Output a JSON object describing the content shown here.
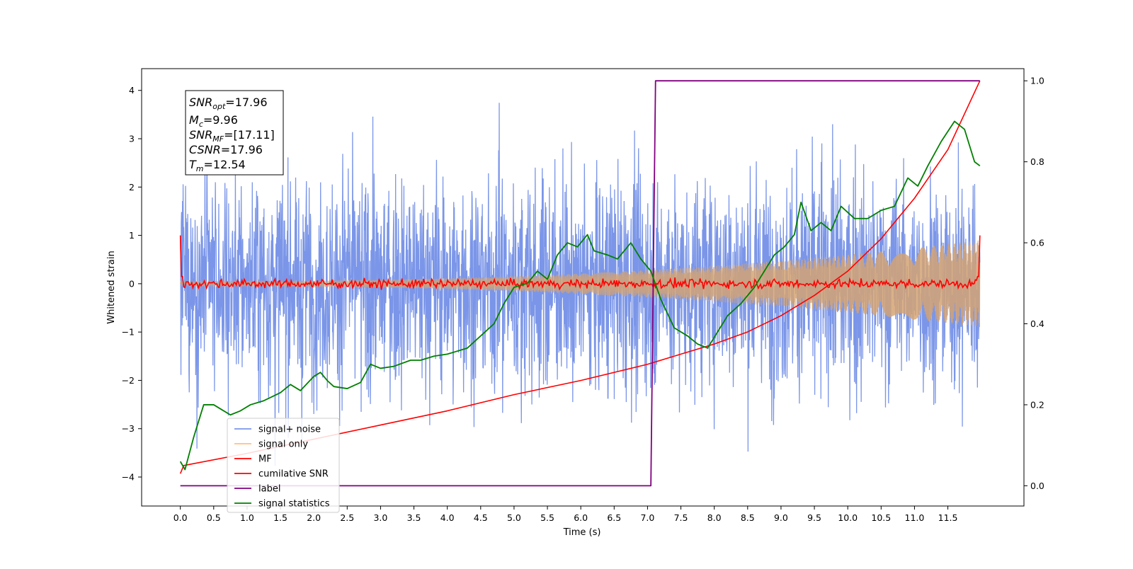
{
  "chart_data": {
    "type": "line",
    "xlabel": "Time (s)",
    "ylabel": "Whitened strain",
    "xlim": [
      -0.58,
      12.64
    ],
    "ylim": [
      -4.6,
      4.45
    ],
    "ylim_right": [
      -0.05,
      1.03
    ],
    "x_ticks": [
      "0.0",
      "0.5",
      "1.0",
      "1.5",
      "2.0",
      "2.5",
      "3.0",
      "3.5",
      "4.0",
      "4.5",
      "5.0",
      "5.5",
      "6.0",
      "6.5",
      "7.0",
      "7.5",
      "8.0",
      "8.5",
      "9.0",
      "9.5",
      "10.0",
      "10.5",
      "11.0",
      "11.5"
    ],
    "y_ticks_left": [
      "4",
      "3",
      "2",
      "1",
      "0",
      "−1",
      "−2",
      "−3",
      "−4"
    ],
    "y_ticks_right": [
      "1.0",
      "0.8",
      "0.6",
      "0.4",
      "0.2",
      "0.0"
    ],
    "annotation": {
      "lines": [
        {
          "base": "SNR",
          "sub": "opt",
          "value": "=17.96"
        },
        {
          "base": "M",
          "sub": "c",
          "value": "=9.96"
        },
        {
          "base": "SNR",
          "sub": "MF",
          "value": "=[17.11]"
        },
        {
          "base": "CSNR",
          "sub": "",
          "value": "=17.96"
        },
        {
          "base": "T",
          "sub": "m",
          "value": "=12.54"
        }
      ]
    },
    "legend": {
      "placement": "lower-left",
      "entries": [
        {
          "label": "signal+ noise",
          "color": "#7b96e8"
        },
        {
          "label": "signal only",
          "color": "#ffc080"
        },
        {
          "label": "MF",
          "color": "#ff0000"
        },
        {
          "label": "cumilative SNR",
          "color": "#ff0000"
        },
        {
          "label": "label",
          "color": "#800080"
        },
        {
          "label": "signal statistics",
          "color": "#008000"
        }
      ]
    },
    "series": [
      {
        "name": "signal+ noise",
        "axis": "left",
        "color": "#7b96e8",
        "noise": true,
        "std": 1.1,
        "t_start": 0.0,
        "t_end": 11.98
      },
      {
        "name": "signal only",
        "axis": "left",
        "color": "#d4a373",
        "chirp": true,
        "amp_start": 0.05,
        "amp_end": 0.9,
        "t_start": 0.0,
        "t_end": 11.98
      },
      {
        "name": "MF",
        "axis": "left",
        "color": "#ff0000",
        "t_start": 0.0,
        "t_end": 11.98
      },
      {
        "name": "cumilative SNR",
        "axis": "right",
        "color": "#ff0000",
        "x": [
          0.0,
          0.05,
          1.0,
          2.0,
          3.0,
          4.0,
          5.0,
          6.0,
          7.0,
          7.5,
          8.0,
          8.5,
          9.0,
          9.5,
          10.0,
          10.5,
          11.0,
          11.5,
          11.98
        ],
        "y": [
          0.03,
          0.05,
          0.08,
          0.115,
          0.15,
          0.185,
          0.225,
          0.26,
          0.3,
          0.325,
          0.35,
          0.38,
          0.42,
          0.47,
          0.53,
          0.61,
          0.71,
          0.83,
          1.0
        ]
      },
      {
        "name": "label",
        "axis": "right",
        "color": "#800080",
        "x": [
          0.0,
          7.05,
          7.12,
          11.98
        ],
        "y": [
          0.0,
          0.0,
          1.0,
          1.0
        ]
      },
      {
        "name": "signal statistics",
        "axis": "right",
        "color": "#008000",
        "x": [
          0.0,
          0.07,
          0.2,
          0.35,
          0.5,
          0.6,
          0.75,
          0.9,
          1.05,
          1.25,
          1.5,
          1.65,
          1.8,
          2.0,
          2.1,
          2.2,
          2.3,
          2.5,
          2.7,
          2.85,
          3.0,
          3.2,
          3.45,
          3.6,
          3.8,
          4.0,
          4.1,
          4.3,
          4.5,
          4.7,
          4.85,
          5.0,
          5.2,
          5.35,
          5.5,
          5.65,
          5.8,
          5.95,
          6.1,
          6.2,
          6.4,
          6.55,
          6.75,
          6.9,
          7.05,
          7.2,
          7.4,
          7.6,
          7.75,
          7.9,
          8.05,
          8.2,
          8.4,
          8.6,
          8.75,
          8.9,
          9.05,
          9.2,
          9.3,
          9.45,
          9.6,
          9.75,
          9.9,
          10.1,
          10.3,
          10.5,
          10.7,
          10.9,
          11.05,
          11.2,
          11.4,
          11.6,
          11.75,
          11.9,
          11.98
        ],
        "y": [
          0.06,
          0.04,
          0.12,
          0.2,
          0.2,
          0.19,
          0.175,
          0.185,
          0.2,
          0.21,
          0.23,
          0.25,
          0.235,
          0.27,
          0.28,
          0.26,
          0.245,
          0.24,
          0.255,
          0.3,
          0.29,
          0.295,
          0.31,
          0.31,
          0.32,
          0.325,
          0.33,
          0.34,
          0.37,
          0.4,
          0.45,
          0.49,
          0.5,
          0.53,
          0.51,
          0.57,
          0.6,
          0.59,
          0.62,
          0.58,
          0.57,
          0.56,
          0.6,
          0.56,
          0.53,
          0.46,
          0.39,
          0.37,
          0.35,
          0.34,
          0.38,
          0.42,
          0.45,
          0.49,
          0.53,
          0.57,
          0.59,
          0.62,
          0.7,
          0.63,
          0.65,
          0.63,
          0.69,
          0.66,
          0.66,
          0.68,
          0.69,
          0.76,
          0.74,
          0.79,
          0.85,
          0.9,
          0.88,
          0.8,
          0.79
        ]
      }
    ]
  }
}
